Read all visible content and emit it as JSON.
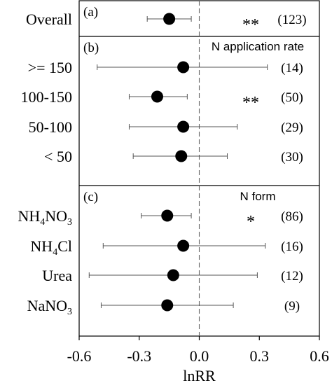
{
  "chart_data": {
    "type": "forest",
    "xlabel": "lnRR",
    "xlim": [
      -0.6,
      0.6
    ],
    "xticks": [
      -0.6,
      -0.3,
      0.0,
      0.3,
      0.6
    ],
    "tick_labels": [
      "-0.6",
      "-0.3",
      "0.0",
      "0.3",
      "0.6"
    ],
    "reference_line": 0.0,
    "panels": [
      {
        "tag": "(a)",
        "title": "",
        "rows": [
          {
            "label": "Overall",
            "mean": -0.15,
            "lower": -0.26,
            "upper": -0.04,
            "sig": "**",
            "n": "(123)"
          }
        ]
      },
      {
        "tag": "(b)",
        "title": "N application rate",
        "rows": [
          {
            "label": ">= 150",
            "mean": -0.08,
            "lower": -0.51,
            "upper": 0.34,
            "sig": "",
            "n": "(14)"
          },
          {
            "label": "100-150",
            "mean": -0.21,
            "lower": -0.35,
            "upper": -0.06,
            "sig": "**",
            "n": "(50)"
          },
          {
            "label": "50-100",
            "mean": -0.08,
            "lower": -0.35,
            "upper": 0.19,
            "sig": "",
            "n": "(29)"
          },
          {
            "label": "< 50",
            "mean": -0.09,
            "lower": -0.33,
            "upper": 0.14,
            "sig": "",
            "n": "(30)"
          }
        ]
      },
      {
        "tag": "(c)",
        "title": "N form",
        "rows": [
          {
            "label": "NH4NO3",
            "label_main": "NH",
            "label_sub1": "4",
            "label_mid": "NO",
            "label_sub2": "3",
            "mean": -0.16,
            "lower": -0.29,
            "upper": -0.04,
            "sig": "*",
            "n": "(86)"
          },
          {
            "label": "NH4Cl",
            "label_main": "NH",
            "label_sub1": "4",
            "label_mid": "Cl",
            "label_sub2": "",
            "mean": -0.08,
            "lower": -0.48,
            "upper": 0.33,
            "sig": "",
            "n": "(16)"
          },
          {
            "label": "Urea",
            "mean": -0.13,
            "lower": -0.55,
            "upper": 0.29,
            "sig": "",
            "n": "(12)"
          },
          {
            "label": "NaNO3",
            "label_main": "NaNO",
            "label_sub1": "3",
            "label_mid": "",
            "label_sub2": "",
            "mean": -0.16,
            "lower": -0.49,
            "upper": 0.17,
            "sig": "",
            "n": "(9)"
          }
        ]
      }
    ]
  }
}
